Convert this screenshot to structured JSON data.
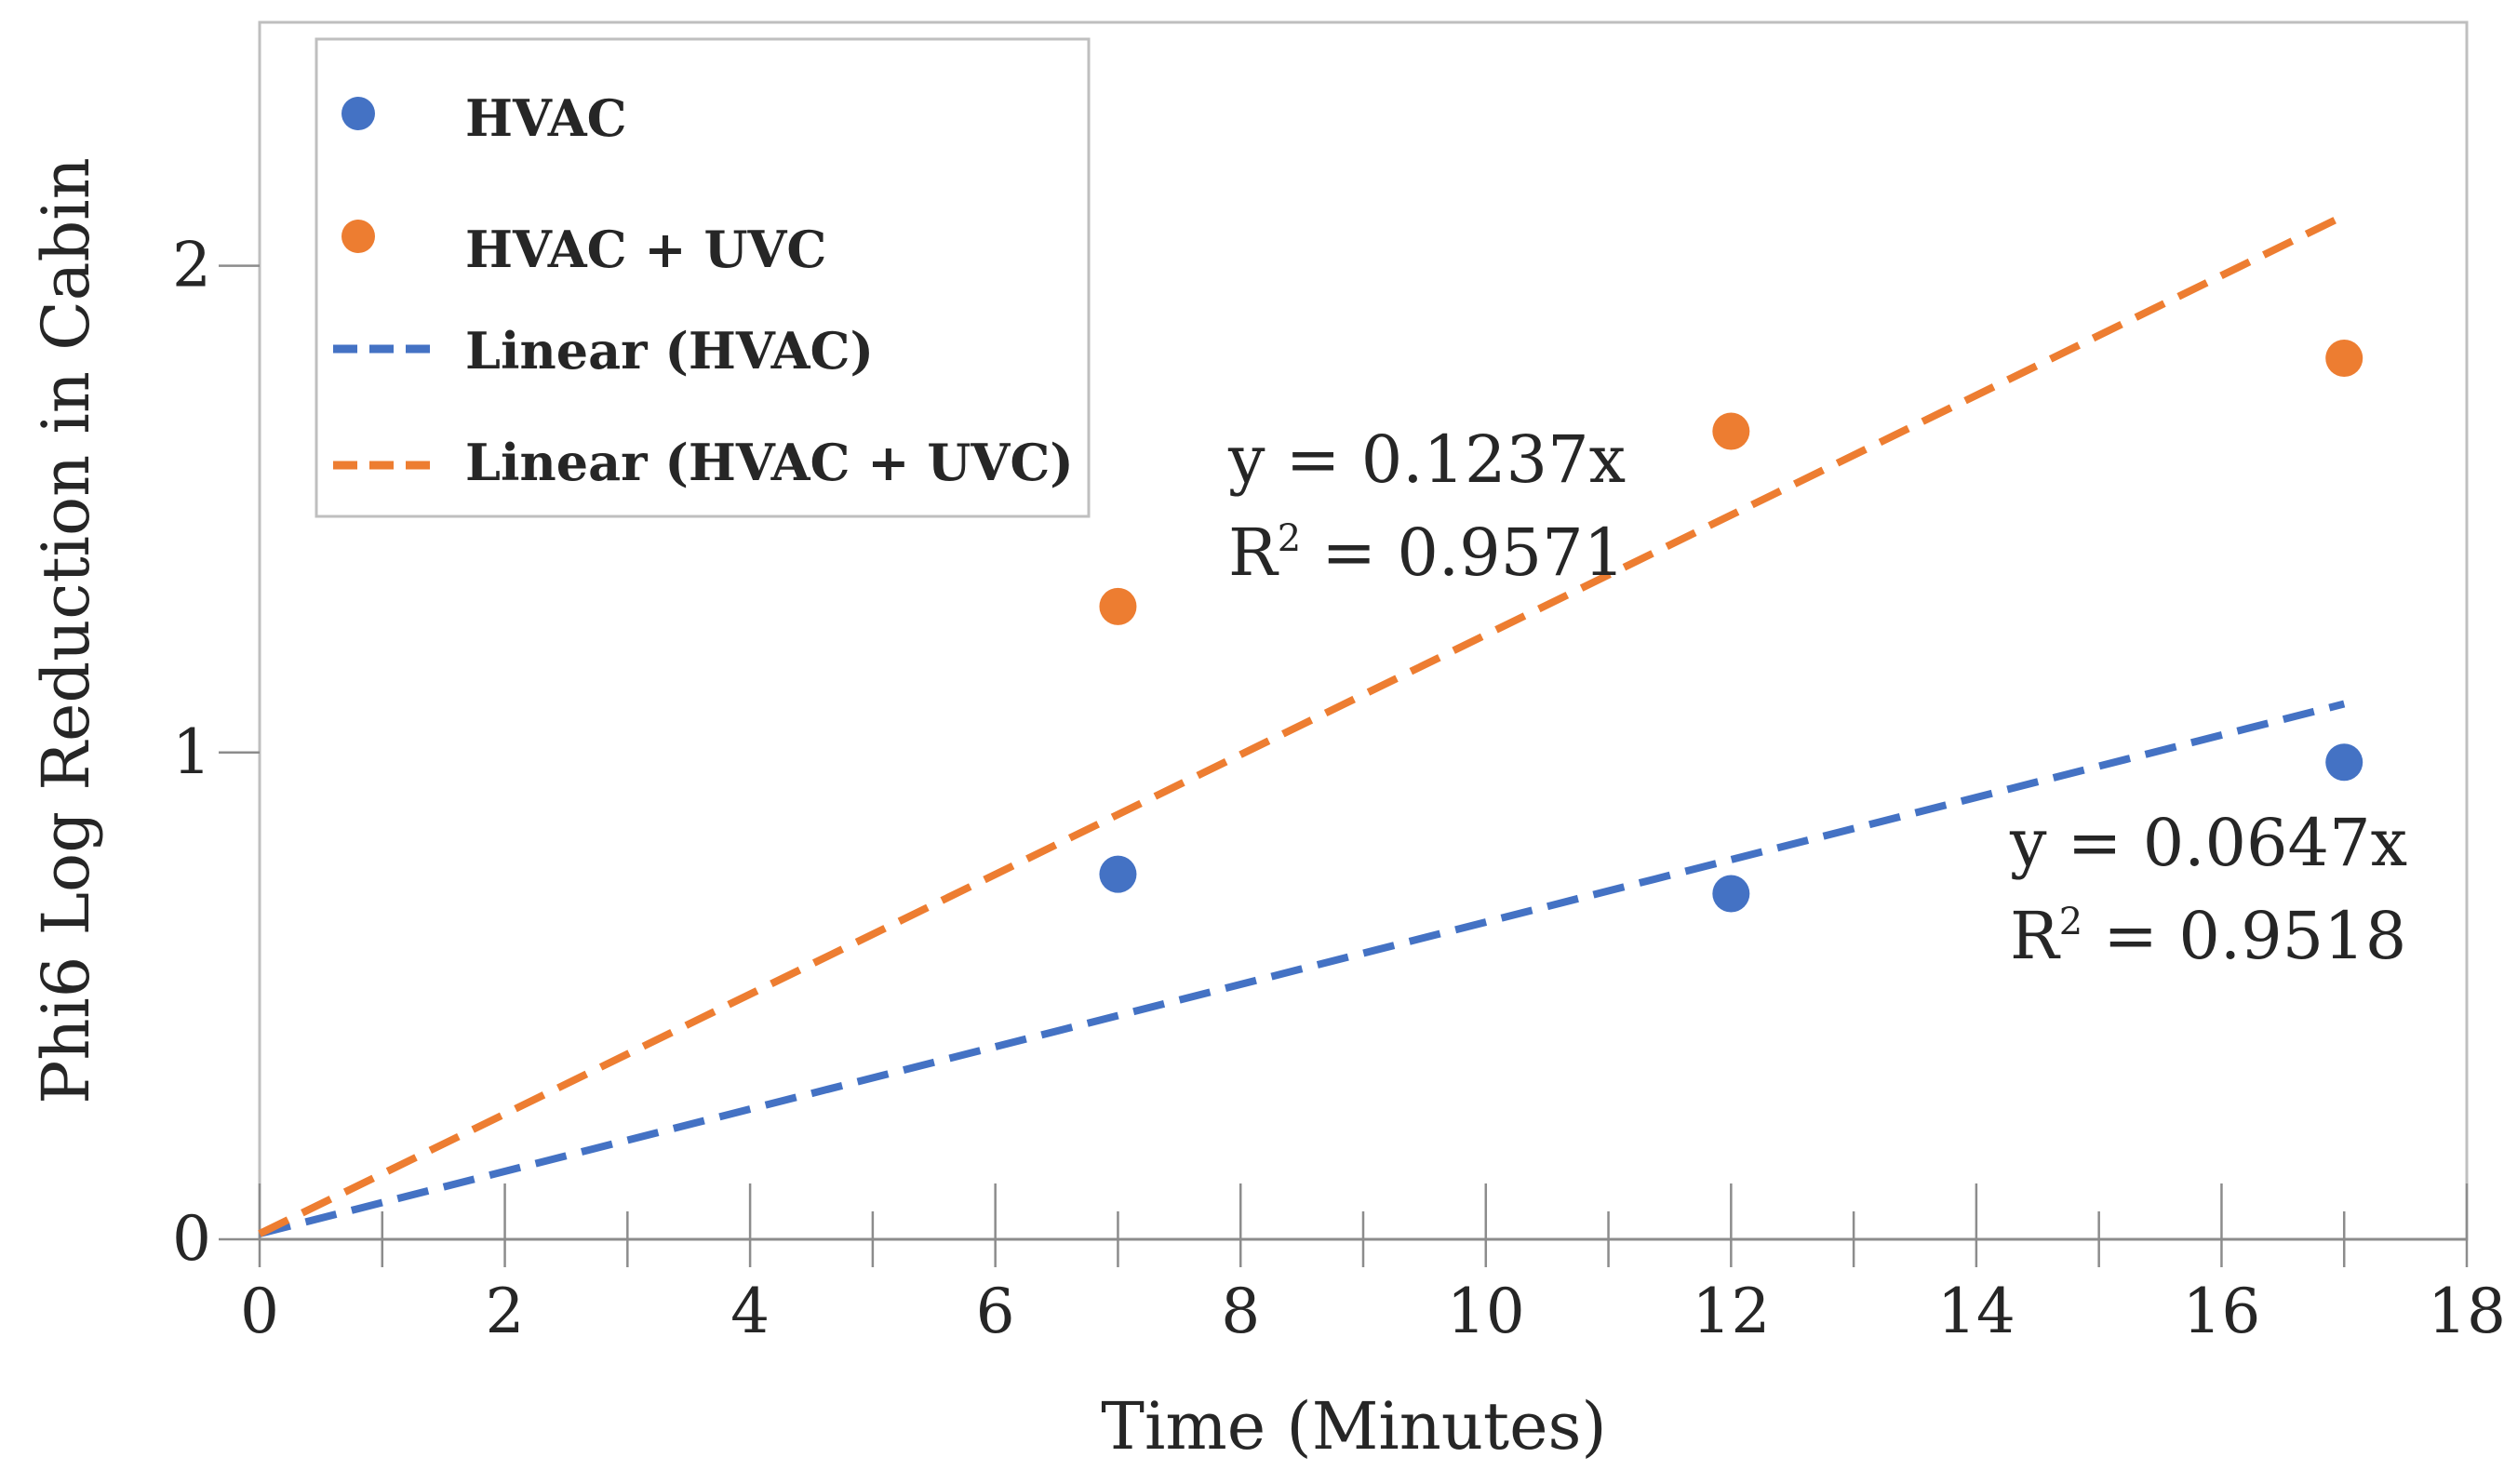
{
  "chart_data": {
    "type": "scatter",
    "title": "",
    "xlabel": "Time (Minutes)",
    "ylabel": "Phi6 Log Reduction in Cabin",
    "xlim": [
      0,
      18
    ],
    "ylim": [
      0,
      2.5
    ],
    "x_ticks": [
      "0",
      "2",
      "4",
      "6",
      "8",
      "10",
      "12",
      "14",
      "16",
      "18"
    ],
    "y_ticks": [
      "0",
      "1",
      "2"
    ],
    "grid": false,
    "legend_position": "top-left",
    "series": [
      {
        "name": "HVAC",
        "kind": "points",
        "color": "#4472C4",
        "x": [
          7,
          12,
          17
        ],
        "y": [
          0.75,
          0.71,
          0.98
        ]
      },
      {
        "name": "HVAC + UVC",
        "kind": "points",
        "color": "#ED7D31",
        "x": [
          7,
          12,
          17
        ],
        "y": [
          1.3,
          1.66,
          1.81
        ]
      },
      {
        "name": "Linear (HVAC)",
        "kind": "trendline",
        "color": "#4472C4",
        "slope": 0.0647,
        "x": [
          0,
          17
        ]
      },
      {
        "name": "Linear (HVAC + UVC)",
        "kind": "trendline",
        "color": "#ED7D31",
        "slope": 0.1237,
        "x": [
          0,
          17
        ]
      }
    ],
    "annotations": {
      "uvc_equation": "y = 0.1237x",
      "uvc_r2_prefix": "R",
      "uvc_r2_sup": "2",
      "uvc_r2_value": " = 0.9571",
      "hvac_equation": "y = 0.0647x",
      "hvac_r2_prefix": "R",
      "hvac_r2_sup": "2",
      "hvac_r2_value": " = 0.9518"
    }
  }
}
